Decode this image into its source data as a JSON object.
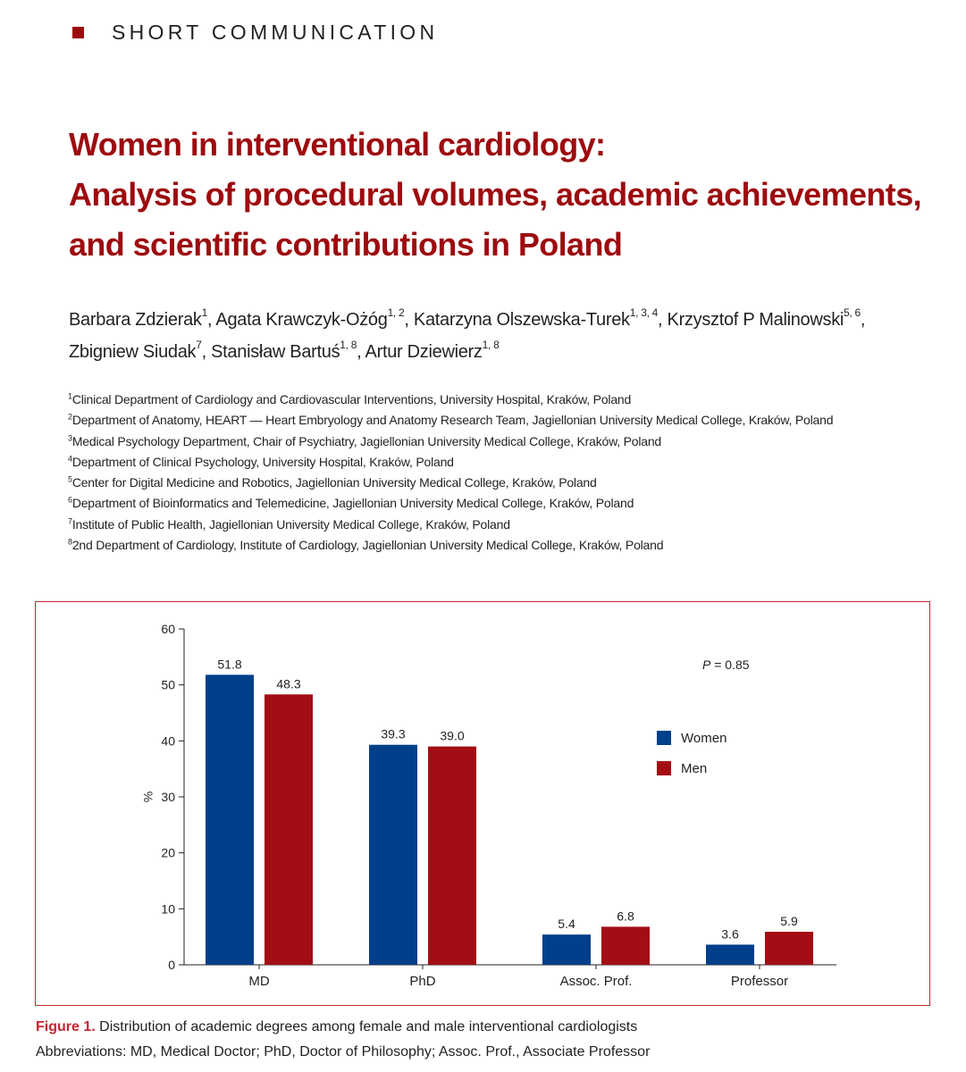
{
  "section": {
    "label": "SHORT COMMUNICATION",
    "accent_color": "#9d0b0f"
  },
  "title": {
    "lines": [
      "Women in interventional cardiology:",
      "Analysis of procedural volumes, academic achievements,",
      "and scientific contributions in Poland"
    ],
    "color": "#9d0b0f"
  },
  "authors": [
    {
      "name": "Barbara Zdzierak",
      "aff": "1",
      "sep": ", "
    },
    {
      "name": "Agata Krawczyk-Ożóg",
      "aff": "1, 2",
      "sep": ", "
    },
    {
      "name": "Katarzyna Olszewska-Turek",
      "aff": "1, 3, 4",
      "sep": ", "
    },
    {
      "name": "Krzysztof P Malinowski",
      "aff": "5, 6",
      "sep": ","
    },
    {
      "name": "Zbigniew Siudak",
      "aff": "7",
      "sep": ", "
    },
    {
      "name": "Stanisław Bartuś",
      "aff": "1, 8",
      "sep": ", "
    },
    {
      "name": "Artur Dziewierz",
      "aff": "1, 8",
      "sep": ""
    }
  ],
  "affiliations": [
    {
      "num": "1",
      "text": "Clinical Department of Cardiology and Cardiovascular Interventions, University Hospital, Kraków, Poland"
    },
    {
      "num": "2",
      "text": "Department of Anatomy, HEART — Heart Embryology and Anatomy Research Team, Jagiellonian University Medical College, Kraków, Poland"
    },
    {
      "num": "3",
      "text": "Medical Psychology Department, Chair of Psychiatry, Jagiellonian University Medical College, Kraków, Poland"
    },
    {
      "num": "4",
      "text": "Department of Clinical Psychology, University Hospital, Kraków, Poland"
    },
    {
      "num": "5",
      "text": "Center for Digital Medicine and Robotics, Jagiellonian University Medical College, Kraków, Poland"
    },
    {
      "num": "6",
      "text": "Department of Bioinformatics and Telemedicine, Jagiellonian University Medical College, Kraków, Poland"
    },
    {
      "num": "7",
      "text": "Institute of Public Health, Jagiellonian University Medical College, Kraków, Poland"
    },
    {
      "num": "8",
      "text": "2nd Department of Cardiology, Institute of Cardiology, Jagiellonian University Medical College, Kraków, Poland"
    }
  ],
  "chart_data": {
    "type": "bar",
    "categories": [
      "MD",
      "PhD",
      "Assoc. Prof.",
      "Professor"
    ],
    "series": [
      {
        "name": "Women",
        "values": [
          51.8,
          39.3,
          5.4,
          3.6
        ],
        "labels": [
          "51.8",
          "39.3",
          "5.4",
          "3.6"
        ],
        "color": "#003f8a"
      },
      {
        "name": "Men",
        "values": [
          48.3,
          39.0,
          6.8,
          5.9
        ],
        "labels": [
          "48.3",
          "39.0",
          "6.8",
          "5.9"
        ],
        "color": "#a30d14"
      }
    ],
    "ylabel": "%",
    "ylim": [
      0,
      60
    ],
    "yticks": [
      0,
      10,
      20,
      30,
      40,
      50,
      60
    ],
    "grid": false,
    "legend": "right",
    "annotation": {
      "italic": "P",
      "text": " = 0.85"
    }
  },
  "caption": {
    "figure_label": "Figure 1.",
    "text": " Distribution of academic degrees among female and male interventional cardiologists",
    "abbreviations": "Abbreviations: MD, Medical Doctor; PhD, Doctor of Philosophy; Assoc. Prof., Associate Professor",
    "label_color": "#c2272d"
  }
}
